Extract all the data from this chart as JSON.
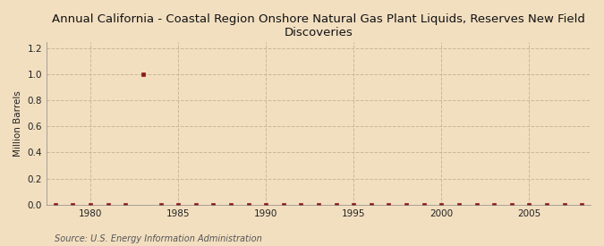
{
  "title": "Annual California - Coastal Region Onshore Natural Gas Plant Liquids, Reserves New Field\nDiscoveries",
  "ylabel": "Million Barrels",
  "source": "Source: U.S. Energy Information Administration",
  "background_color": "#f2dfc0",
  "plot_background_color": "#f2dfc0",
  "marker_color": "#8b1a1a",
  "marker": "s",
  "marker_size": 3.0,
  "xlim": [
    1977.5,
    2008.5
  ],
  "ylim": [
    0.0,
    1.25
  ],
  "yticks": [
    0.0,
    0.2,
    0.4,
    0.6,
    0.8,
    1.0,
    1.2
  ],
  "xticks": [
    1980,
    1985,
    1990,
    1995,
    2000,
    2005
  ],
  "grid_color": "#c8b89a",
  "grid_style": "--",
  "years": [
    1978,
    1979,
    1980,
    1981,
    1982,
    1983,
    1984,
    1985,
    1986,
    1987,
    1988,
    1989,
    1990,
    1991,
    1992,
    1993,
    1994,
    1995,
    1996,
    1997,
    1998,
    1999,
    2000,
    2001,
    2002,
    2003,
    2004,
    2005,
    2006,
    2007,
    2008
  ],
  "values": [
    0,
    0,
    0,
    0,
    0,
    1.0,
    0,
    0,
    0,
    0,
    0,
    0,
    0,
    0,
    0,
    0,
    0,
    0,
    0,
    0,
    0,
    0,
    0,
    0,
    0,
    0,
    0,
    0,
    0,
    0,
    0
  ],
  "title_fontsize": 9.5,
  "axis_fontsize": 7.5,
  "source_fontsize": 7.0
}
